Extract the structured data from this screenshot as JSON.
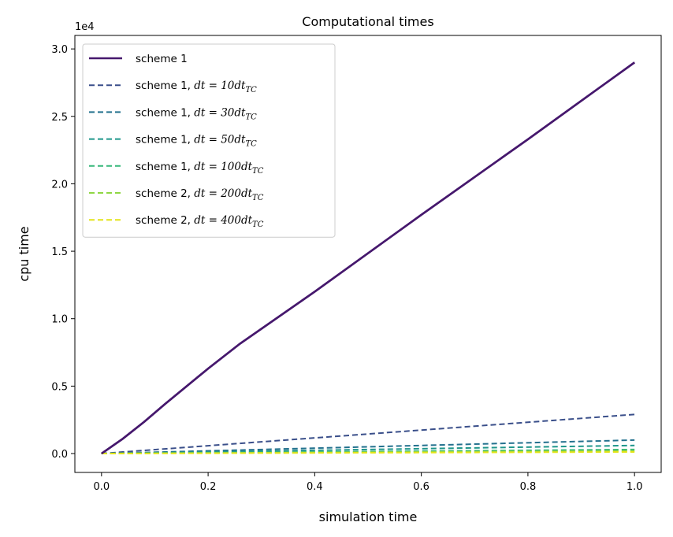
{
  "chart_data": {
    "type": "line",
    "title": "Computational times",
    "xlabel": "simulation time",
    "ylabel": "cpu time",
    "offset_text": "1e4",
    "xlim": [
      -0.05,
      1.05
    ],
    "ylim": [
      -0.14,
      3.1
    ],
    "y_scale_note": "values in units of 1e4",
    "x_ticks": [
      0.0,
      0.2,
      0.4,
      0.6,
      0.8,
      1.0
    ],
    "x_tick_labels": [
      "0.0",
      "0.2",
      "0.4",
      "0.6",
      "0.8",
      "1.0"
    ],
    "y_ticks": [
      0.0,
      0.5,
      1.0,
      1.5,
      2.0,
      2.5,
      3.0
    ],
    "y_tick_labels": [
      "0.0",
      "0.5",
      "1.0",
      "1.5",
      "2.0",
      "2.5",
      "3.0"
    ],
    "legend_position": "upper-left",
    "series": [
      {
        "name": "scheme 1",
        "label_text": "scheme 1",
        "math": "",
        "math_sub": "",
        "color": "#46186d",
        "style": "solid",
        "x": [
          0.0,
          0.04,
          0.08,
          0.12,
          0.2,
          0.26,
          0.4,
          0.6,
          0.8,
          1.0
        ],
        "y": [
          0.0,
          0.11,
          0.235,
          0.37,
          0.63,
          0.815,
          1.2,
          1.77,
          2.33,
          2.9
        ]
      },
      {
        "name": "scheme 1, dt=10dt_TC",
        "label_text": "scheme 1, ",
        "math": "dt = 10dt",
        "math_sub": "TC",
        "color": "#3a4f8a",
        "style": "dashed",
        "x": [
          0.0,
          1.0
        ],
        "y": [
          0.0,
          0.29
        ]
      },
      {
        "name": "scheme 1, dt=30dt_TC",
        "label_text": "scheme 1, ",
        "math": "dt = 30dt",
        "math_sub": "TC",
        "color": "#23718e",
        "style": "dashed",
        "x": [
          0.0,
          1.0
        ],
        "y": [
          0.0,
          0.1
        ]
      },
      {
        "name": "scheme 1, dt=50dt_TC",
        "label_text": "scheme 1, ",
        "math": "dt = 50dt",
        "math_sub": "TC",
        "color": "#1f968b",
        "style": "dashed",
        "x": [
          0.0,
          1.0
        ],
        "y": [
          0.0,
          0.06
        ]
      },
      {
        "name": "scheme 1, dt=100dt_TC",
        "label_text": "scheme 1, ",
        "math": "dt = 100dt",
        "math_sub": "TC",
        "color": "#35b779",
        "style": "dashed",
        "x": [
          0.0,
          1.0
        ],
        "y": [
          0.0,
          0.03
        ]
      },
      {
        "name": "scheme 2, dt=200dt_TC",
        "label_text": "scheme 2, ",
        "math": "dt = 200dt",
        "math_sub": "TC",
        "color": "#8fd744",
        "style": "dashed",
        "x": [
          0.0,
          1.0
        ],
        "y": [
          0.0,
          0.02
        ]
      },
      {
        "name": "scheme 2, dt=400dt_TC",
        "label_text": "scheme 2, ",
        "math": "dt = 400dt",
        "math_sub": "TC",
        "color": "#e3e418",
        "style": "dashed",
        "x": [
          0.0,
          1.0
        ],
        "y": [
          0.0,
          0.012
        ]
      }
    ]
  }
}
